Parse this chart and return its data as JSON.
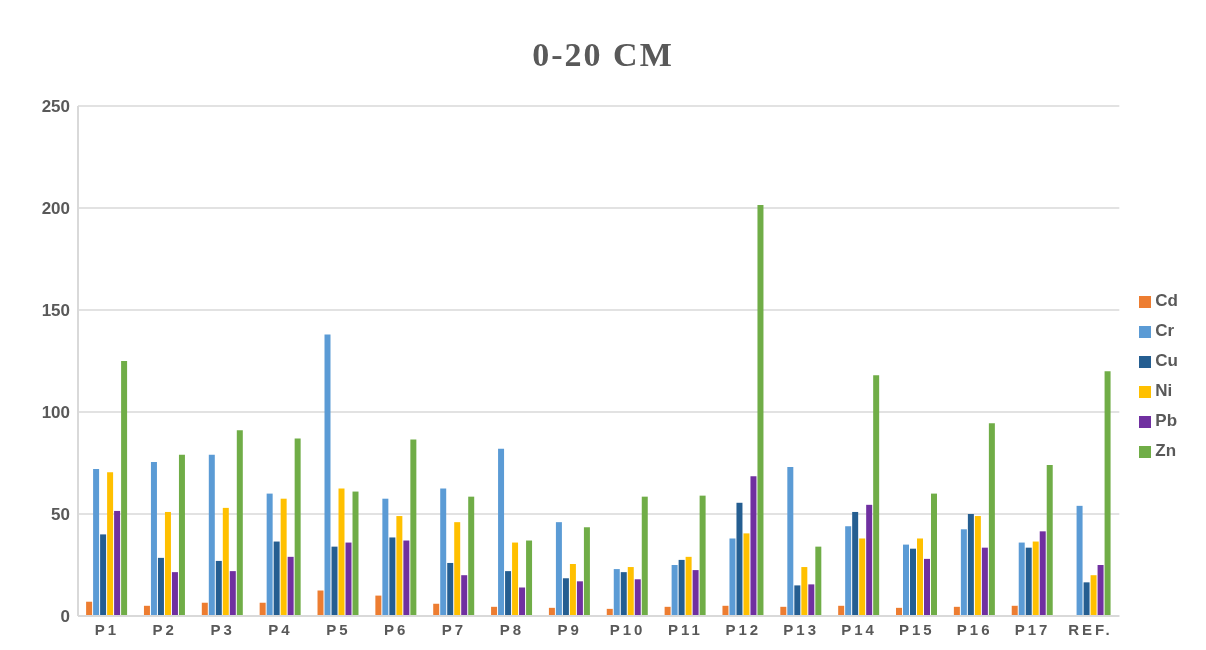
{
  "chart_data": {
    "type": "bar",
    "title": "0-20 CM",
    "categories": [
      "P1",
      "P2",
      "P3",
      "P4",
      "P5",
      "P6",
      "P7",
      "P8",
      "P9",
      "P10",
      "P11",
      "P12",
      "P13",
      "P14",
      "P15",
      "P16",
      "P17",
      "REF."
    ],
    "series": [
      {
        "name": "Cd",
        "color": "#ed7d31",
        "values": [
          7,
          5,
          6.5,
          6.5,
          12.5,
          10,
          6,
          4.5,
          4,
          3.5,
          4.5,
          5,
          4.5,
          5,
          4,
          4.5,
          5,
          null
        ]
      },
      {
        "name": "Cr",
        "color": "#5b9bd5",
        "values": [
          72,
          75.5,
          79,
          60,
          138,
          57.5,
          62.5,
          82,
          46,
          23,
          25,
          38,
          73,
          44,
          35,
          42.5,
          36,
          54
        ]
      },
      {
        "name": "Cu",
        "color": "#255e91",
        "values": [
          40,
          28.5,
          27,
          36.5,
          34,
          38.5,
          26,
          22,
          18.5,
          21.5,
          27.5,
          55.5,
          15,
          51,
          33,
          50,
          33.5,
          16.5
        ]
      },
      {
        "name": "Ni",
        "color": "#ffc000",
        "values": [
          70.5,
          51,
          53,
          57.5,
          62.5,
          49,
          46,
          36,
          25.5,
          24,
          29,
          40.5,
          24,
          38,
          38,
          49,
          36.5,
          20
        ]
      },
      {
        "name": "Pb",
        "color": "#7030a0",
        "values": [
          51.5,
          21.5,
          22,
          29,
          36,
          37,
          20,
          14,
          17,
          18,
          22.5,
          68.5,
          15.5,
          54.5,
          28,
          33.5,
          41.5,
          25
        ]
      },
      {
        "name": "Zn",
        "color": "#70ad47",
        "values": [
          125,
          79,
          91,
          87,
          61,
          86.5,
          58.5,
          37,
          43.5,
          58.5,
          59,
          201.5,
          34,
          118,
          60,
          94.5,
          74,
          120
        ]
      }
    ],
    "ylim": [
      0,
      250
    ],
    "yticks": [
      0,
      50,
      100,
      150,
      200,
      250
    ],
    "grid": "y",
    "legend": "right"
  }
}
